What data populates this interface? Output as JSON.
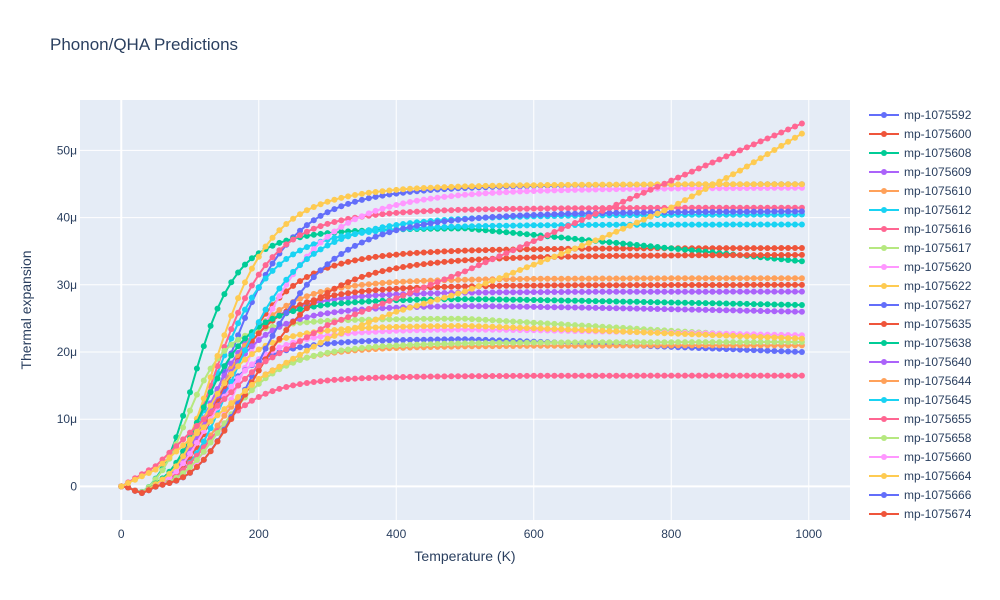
{
  "chart_data": {
    "type": "line",
    "title": "Phonon/QHA Predictions",
    "xlabel": "Temperature (K)",
    "ylabel": "Thermal expansion",
    "xlim": [
      -60,
      1060
    ],
    "ylim": [
      -5e-06,
      5.75e-05
    ],
    "x_ticks": [
      0,
      200,
      400,
      600,
      800,
      1000
    ],
    "x_tick_labels": [
      "0",
      "200",
      "400",
      "600",
      "800",
      "1000"
    ],
    "y_ticks": [
      0,
      1e-05,
      2e-05,
      3e-05,
      4e-05,
      5e-05
    ],
    "y_tick_labels": [
      "0",
      "10μ",
      "20μ",
      "30μ",
      "40μ",
      "50μ"
    ],
    "x_range": {
      "start": 0,
      "stop": 990,
      "step": 10
    },
    "legend_position": "right",
    "series": [
      {
        "name": "mp-1075592",
        "color": "#636efa",
        "plateau": 45.0,
        "t50": 170,
        "droop": 0.0
      },
      {
        "name": "mp-1075600",
        "color": "#EF553B",
        "plateau": 35.5,
        "t50": 165,
        "droop": 0.0
      },
      {
        "name": "mp-1075608",
        "color": "#00cc96",
        "plateau": 38.5,
        "t50": 115,
        "droop": 5.0
      },
      {
        "name": "mp-1075609",
        "color": "#ab63fa",
        "plateau": 29.0,
        "t50": 140,
        "droop": 0.0
      },
      {
        "name": "mp-1075610",
        "color": "#FFA15A",
        "plateau": 31.0,
        "t50": 150,
        "droop": 0.0
      },
      {
        "name": "mp-1075612",
        "color": "#19d3f3",
        "plateau": 39.0,
        "t50": 150,
        "droop": 0.0
      },
      {
        "name": "mp-1075616",
        "color": "#FF6692",
        "plateau": 41.5,
        "t50": 150,
        "droop": 0.0
      },
      {
        "name": "mp-1075617",
        "color": "#B6E880",
        "plateau": 25.0,
        "t50": 105,
        "droop": 3.0
      },
      {
        "name": "mp-1075620",
        "color": "#FF97FF",
        "plateau": 44.5,
        "t50": 200,
        "droop": 0.0
      },
      {
        "name": "mp-1075622",
        "color": "#FECB52",
        "plateau": 45.0,
        "t50": 150,
        "droop": 0.0
      },
      {
        "name": "mp-1075627",
        "color": "#636efa",
        "plateau": 22.0,
        "t50": 130,
        "droop": 2.0
      },
      {
        "name": "mp-1075635",
        "color": "#EF553B",
        "plateau": 30.0,
        "t50": 150,
        "droop": 0.0
      },
      {
        "name": "mp-1075638",
        "color": "#00cc96",
        "plateau": 28.0,
        "t50": 130,
        "droop": 1.0
      },
      {
        "name": "mp-1075640",
        "color": "#ab63fa",
        "plateau": 27.0,
        "t50": 140,
        "droop": 1.0
      },
      {
        "name": "mp-1075644",
        "color": "#FFA15A",
        "plateau": 21.0,
        "t50": 150,
        "droop": 0.0
      },
      {
        "name": "mp-1075645",
        "color": "#19d3f3",
        "plateau": 40.5,
        "t50": 180,
        "droop": 0.0
      },
      {
        "name": "mp-1075655",
        "color": "#FF6692",
        "plateau": 16.5,
        "t50": 140,
        "droop": 0.0
      },
      {
        "name": "mp-1075658",
        "color": "#B6E880",
        "plateau": 21.5,
        "t50": 160,
        "droop": 0.0
      },
      {
        "name": "mp-1075660",
        "color": "#FF97FF",
        "plateau": 23.5,
        "t50": 140,
        "droop": 1.0
      },
      {
        "name": "mp-1075664",
        "color": "#FECB52",
        "plateau": 24.0,
        "t50": 130,
        "droop": 2.0
      },
      {
        "name": "mp-1075666",
        "color": "#636efa",
        "plateau": 41.0,
        "t50": 210,
        "droop": 0.0
      },
      {
        "name": "mp-1075674",
        "color": "#EF553B",
        "plateau": 34.5,
        "t50": 200,
        "droop": 0.0
      }
    ],
    "extra_curves": [
      {
        "color": "#FF6692",
        "points": [
          [
            0,
            0
          ],
          [
            50,
            3
          ],
          [
            100,
            8
          ],
          [
            200,
            18
          ],
          [
            300,
            24
          ],
          [
            400,
            28
          ],
          [
            500,
            32
          ],
          [
            600,
            36.5
          ],
          [
            700,
            41
          ],
          [
            800,
            45.5
          ],
          [
            900,
            50
          ],
          [
            990,
            54
          ]
        ]
      },
      {
        "color": "#FECB52",
        "points": [
          [
            0,
            0
          ],
          [
            50,
            2.5
          ],
          [
            100,
            7
          ],
          [
            200,
            16
          ],
          [
            300,
            22
          ],
          [
            400,
            26
          ],
          [
            500,
            29
          ],
          [
            600,
            33
          ],
          [
            700,
            37
          ],
          [
            800,
            41.5
          ],
          [
            900,
            47
          ],
          [
            990,
            52.5
          ]
        ]
      }
    ]
  }
}
